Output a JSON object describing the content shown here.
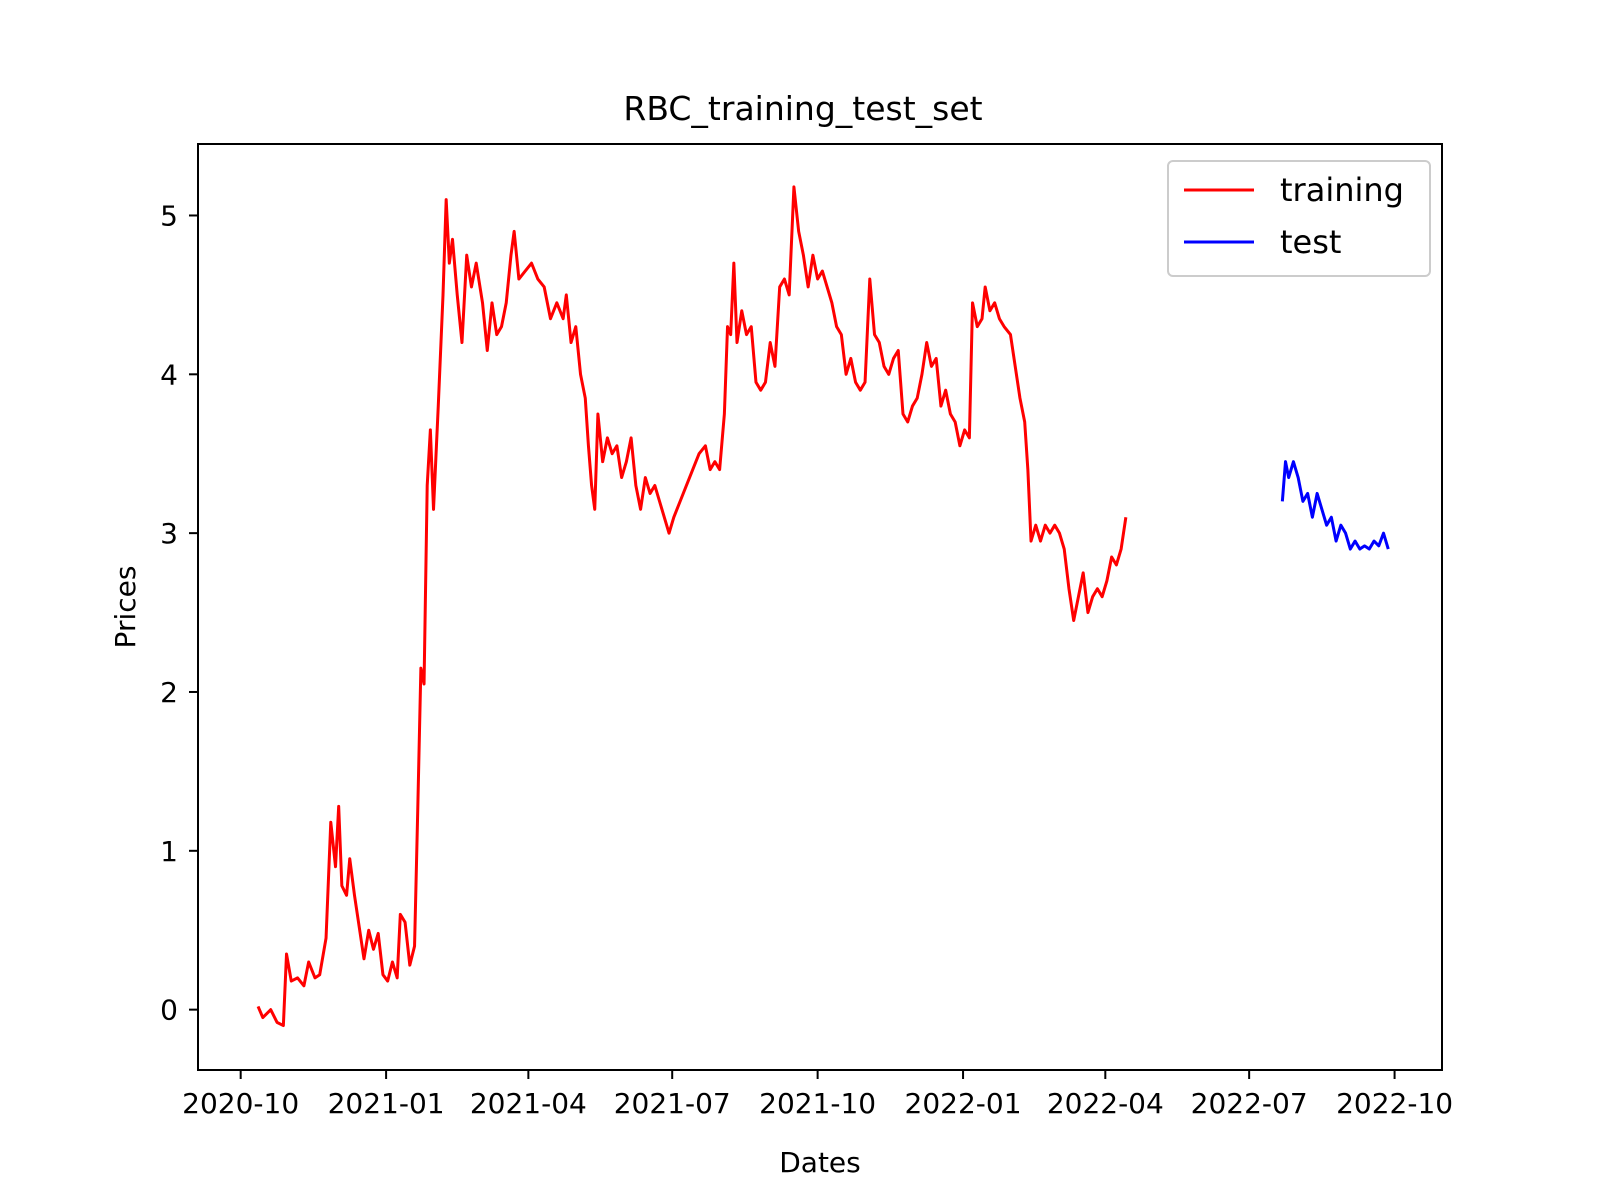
{
  "chart_data": {
    "type": "line",
    "title": "RBC_training_test_set",
    "xlabel": "Dates",
    "ylabel": "Prices",
    "xlim": [
      "2020-09-04",
      "2022-10-31"
    ],
    "ylim": [
      -0.38,
      5.45
    ],
    "x_ticks": [
      "2020-10-01",
      "2021-01-01",
      "2021-04-01",
      "2021-07-01",
      "2021-10-01",
      "2022-01-01",
      "2022-04-01",
      "2022-07-01",
      "2022-10-01"
    ],
    "x_tick_labels": [
      "2020-10",
      "2021-01",
      "2021-04",
      "2021-07",
      "2021-10",
      "2022-01",
      "2022-04",
      "2022-07",
      "2022-10"
    ],
    "y_ticks": [
      0,
      1,
      2,
      3,
      4,
      5
    ],
    "y_tick_labels": [
      "0",
      "1",
      "2",
      "3",
      "4",
      "5"
    ],
    "grid": false,
    "legend_position": "top-right",
    "series": [
      {
        "name": "training",
        "color": "#ff0000",
        "points": [
          [
            "2020-10-12",
            0.02
          ],
          [
            "2020-10-15",
            -0.05
          ],
          [
            "2020-10-20",
            0.0
          ],
          [
            "2020-10-24",
            -0.08
          ],
          [
            "2020-10-28",
            -0.1
          ],
          [
            "2020-10-30",
            0.35
          ],
          [
            "2020-11-02",
            0.18
          ],
          [
            "2020-11-06",
            0.2
          ],
          [
            "2020-11-10",
            0.15
          ],
          [
            "2020-11-13",
            0.3
          ],
          [
            "2020-11-17",
            0.2
          ],
          [
            "2020-11-20",
            0.22
          ],
          [
            "2020-11-24",
            0.45
          ],
          [
            "2020-11-27",
            1.18
          ],
          [
            "2020-11-30",
            0.9
          ],
          [
            "2020-12-02",
            1.28
          ],
          [
            "2020-12-04",
            0.78
          ],
          [
            "2020-12-07",
            0.72
          ],
          [
            "2020-12-09",
            0.95
          ],
          [
            "2020-12-12",
            0.72
          ],
          [
            "2020-12-15",
            0.52
          ],
          [
            "2020-12-18",
            0.32
          ],
          [
            "2020-12-21",
            0.5
          ],
          [
            "2020-12-24",
            0.38
          ],
          [
            "2020-12-27",
            0.48
          ],
          [
            "2020-12-30",
            0.22
          ],
          [
            "2021-01-02",
            0.18
          ],
          [
            "2021-01-05",
            0.3
          ],
          [
            "2021-01-08",
            0.2
          ],
          [
            "2021-01-10",
            0.6
          ],
          [
            "2021-01-13",
            0.55
          ],
          [
            "2021-01-16",
            0.28
          ],
          [
            "2021-01-19",
            0.4
          ],
          [
            "2021-01-21",
            1.25
          ],
          [
            "2021-01-23",
            2.15
          ],
          [
            "2021-01-25",
            2.05
          ],
          [
            "2021-01-27",
            3.3
          ],
          [
            "2021-01-29",
            3.65
          ],
          [
            "2021-01-31",
            3.15
          ],
          [
            "2021-02-03",
            3.8
          ],
          [
            "2021-02-06",
            4.5
          ],
          [
            "2021-02-08",
            5.1
          ],
          [
            "2021-02-10",
            4.7
          ],
          [
            "2021-02-12",
            4.85
          ],
          [
            "2021-02-15",
            4.5
          ],
          [
            "2021-02-18",
            4.2
          ],
          [
            "2021-02-21",
            4.75
          ],
          [
            "2021-02-24",
            4.55
          ],
          [
            "2021-02-27",
            4.7
          ],
          [
            "2021-03-03",
            4.45
          ],
          [
            "2021-03-06",
            4.15
          ],
          [
            "2021-03-09",
            4.45
          ],
          [
            "2021-03-12",
            4.25
          ],
          [
            "2021-03-15",
            4.3
          ],
          [
            "2021-03-18",
            4.45
          ],
          [
            "2021-03-21",
            4.75
          ],
          [
            "2021-03-23",
            4.9
          ],
          [
            "2021-03-26",
            4.6
          ],
          [
            "2021-03-30",
            4.65
          ],
          [
            "2021-04-03",
            4.7
          ],
          [
            "2021-04-07",
            4.6
          ],
          [
            "2021-04-11",
            4.55
          ],
          [
            "2021-04-15",
            4.35
          ],
          [
            "2021-04-19",
            4.45
          ],
          [
            "2021-04-23",
            4.35
          ],
          [
            "2021-04-25",
            4.5
          ],
          [
            "2021-04-28",
            4.2
          ],
          [
            "2021-05-01",
            4.3
          ],
          [
            "2021-05-04",
            4.0
          ],
          [
            "2021-05-07",
            3.85
          ],
          [
            "2021-05-09",
            3.55
          ],
          [
            "2021-05-11",
            3.3
          ],
          [
            "2021-05-13",
            3.15
          ],
          [
            "2021-05-15",
            3.75
          ],
          [
            "2021-05-18",
            3.45
          ],
          [
            "2021-05-21",
            3.6
          ],
          [
            "2021-05-24",
            3.5
          ],
          [
            "2021-05-27",
            3.55
          ],
          [
            "2021-05-30",
            3.35
          ],
          [
            "2021-06-02",
            3.45
          ],
          [
            "2021-06-05",
            3.6
          ],
          [
            "2021-06-08",
            3.3
          ],
          [
            "2021-06-11",
            3.15
          ],
          [
            "2021-06-14",
            3.35
          ],
          [
            "2021-06-17",
            3.25
          ],
          [
            "2021-06-20",
            3.3
          ],
          [
            "2021-06-23",
            3.2
          ],
          [
            "2021-06-26",
            3.1
          ],
          [
            "2021-06-29",
            3.0
          ],
          [
            "2021-07-02",
            3.1
          ],
          [
            "2021-07-06",
            3.2
          ],
          [
            "2021-07-10",
            3.3
          ],
          [
            "2021-07-14",
            3.4
          ],
          [
            "2021-07-18",
            3.5
          ],
          [
            "2021-07-22",
            3.55
          ],
          [
            "2021-07-25",
            3.4
          ],
          [
            "2021-07-28",
            3.45
          ],
          [
            "2021-07-31",
            3.4
          ],
          [
            "2021-08-03",
            3.75
          ],
          [
            "2021-08-05",
            4.3
          ],
          [
            "2021-08-07",
            4.25
          ],
          [
            "2021-08-09",
            4.7
          ],
          [
            "2021-08-11",
            4.2
          ],
          [
            "2021-08-14",
            4.4
          ],
          [
            "2021-08-17",
            4.25
          ],
          [
            "2021-08-20",
            4.3
          ],
          [
            "2021-08-23",
            3.95
          ],
          [
            "2021-08-26",
            3.9
          ],
          [
            "2021-08-29",
            3.95
          ],
          [
            "2021-09-01",
            4.2
          ],
          [
            "2021-09-04",
            4.05
          ],
          [
            "2021-09-07",
            4.55
          ],
          [
            "2021-09-10",
            4.6
          ],
          [
            "2021-09-13",
            4.5
          ],
          [
            "2021-09-16",
            5.18
          ],
          [
            "2021-09-19",
            4.9
          ],
          [
            "2021-09-22",
            4.75
          ],
          [
            "2021-09-25",
            4.55
          ],
          [
            "2021-09-28",
            4.75
          ],
          [
            "2021-10-01",
            4.6
          ],
          [
            "2021-10-04",
            4.65
          ],
          [
            "2021-10-07",
            4.55
          ],
          [
            "2021-10-10",
            4.45
          ],
          [
            "2021-10-13",
            4.3
          ],
          [
            "2021-10-16",
            4.25
          ],
          [
            "2021-10-19",
            4.0
          ],
          [
            "2021-10-22",
            4.1
          ],
          [
            "2021-10-25",
            3.95
          ],
          [
            "2021-10-28",
            3.9
          ],
          [
            "2021-10-31",
            3.95
          ],
          [
            "2021-11-03",
            4.6
          ],
          [
            "2021-11-06",
            4.25
          ],
          [
            "2021-11-09",
            4.2
          ],
          [
            "2021-11-12",
            4.05
          ],
          [
            "2021-11-15",
            4.0
          ],
          [
            "2021-11-18",
            4.1
          ],
          [
            "2021-11-21",
            4.15
          ],
          [
            "2021-11-24",
            3.75
          ],
          [
            "2021-11-27",
            3.7
          ],
          [
            "2021-11-30",
            3.8
          ],
          [
            "2021-12-03",
            3.85
          ],
          [
            "2021-12-06",
            4.0
          ],
          [
            "2021-12-09",
            4.2
          ],
          [
            "2021-12-12",
            4.05
          ],
          [
            "2021-12-15",
            4.1
          ],
          [
            "2021-12-18",
            3.8
          ],
          [
            "2021-12-21",
            3.9
          ],
          [
            "2021-12-24",
            3.75
          ],
          [
            "2021-12-27",
            3.7
          ],
          [
            "2021-12-30",
            3.55
          ],
          [
            "2022-01-02",
            3.65
          ],
          [
            "2022-01-05",
            3.6
          ],
          [
            "2022-01-07",
            4.45
          ],
          [
            "2022-01-10",
            4.3
          ],
          [
            "2022-01-13",
            4.35
          ],
          [
            "2022-01-15",
            4.55
          ],
          [
            "2022-01-18",
            4.4
          ],
          [
            "2022-01-21",
            4.45
          ],
          [
            "2022-01-24",
            4.35
          ],
          [
            "2022-01-27",
            4.3
          ],
          [
            "2022-01-31",
            4.25
          ],
          [
            "2022-02-03",
            4.05
          ],
          [
            "2022-02-06",
            3.85
          ],
          [
            "2022-02-09",
            3.7
          ],
          [
            "2022-02-11",
            3.4
          ],
          [
            "2022-02-13",
            2.95
          ],
          [
            "2022-02-16",
            3.05
          ],
          [
            "2022-02-19",
            2.95
          ],
          [
            "2022-02-22",
            3.05
          ],
          [
            "2022-02-25",
            3.0
          ],
          [
            "2022-02-28",
            3.05
          ],
          [
            "2022-03-03",
            3.0
          ],
          [
            "2022-03-06",
            2.9
          ],
          [
            "2022-03-09",
            2.65
          ],
          [
            "2022-03-12",
            2.45
          ],
          [
            "2022-03-15",
            2.6
          ],
          [
            "2022-03-18",
            2.75
          ],
          [
            "2022-03-21",
            2.5
          ],
          [
            "2022-03-24",
            2.6
          ],
          [
            "2022-03-27",
            2.65
          ],
          [
            "2022-03-30",
            2.6
          ],
          [
            "2022-04-02",
            2.7
          ],
          [
            "2022-04-05",
            2.85
          ],
          [
            "2022-04-08",
            2.8
          ],
          [
            "2022-04-11",
            2.9
          ],
          [
            "2022-04-14",
            3.1
          ]
        ]
      },
      {
        "name": "test",
        "color": "#0000ff",
        "points": [
          [
            "2022-07-22",
            3.2
          ],
          [
            "2022-07-24",
            3.45
          ],
          [
            "2022-07-26",
            3.35
          ],
          [
            "2022-07-29",
            3.45
          ],
          [
            "2022-08-01",
            3.35
          ],
          [
            "2022-08-04",
            3.2
          ],
          [
            "2022-08-07",
            3.25
          ],
          [
            "2022-08-10",
            3.1
          ],
          [
            "2022-08-13",
            3.25
          ],
          [
            "2022-08-16",
            3.15
          ],
          [
            "2022-08-19",
            3.05
          ],
          [
            "2022-08-22",
            3.1
          ],
          [
            "2022-08-25",
            2.95
          ],
          [
            "2022-08-28",
            3.05
          ],
          [
            "2022-08-31",
            3.0
          ],
          [
            "2022-09-03",
            2.9
          ],
          [
            "2022-09-06",
            2.95
          ],
          [
            "2022-09-09",
            2.9
          ],
          [
            "2022-09-12",
            2.92
          ],
          [
            "2022-09-15",
            2.9
          ],
          [
            "2022-09-18",
            2.95
          ],
          [
            "2022-09-21",
            2.92
          ],
          [
            "2022-09-24",
            3.0
          ],
          [
            "2022-09-27",
            2.9
          ]
        ]
      }
    ]
  }
}
